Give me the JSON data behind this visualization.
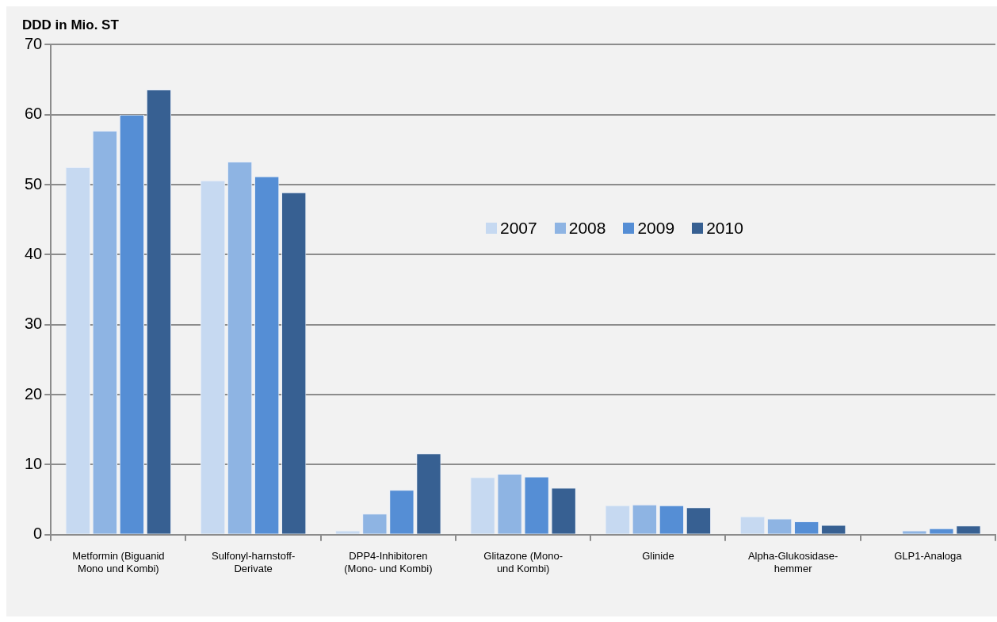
{
  "chart_data": {
    "type": "bar",
    "ylabel": "DDD in Mio. ST",
    "categories": [
      "Metformin (Biguanid Mono und Kombi)",
      "Sulfonyl-harnstoff-Derivate",
      "DPP4-Inhibitoren (Mono- und Kombi)",
      "Glitazone (Mono- und Kombi)",
      "Glinide",
      "Alpha-Glukosidase-hemmer",
      "GLP1-Analoga"
    ],
    "series": [
      {
        "name": "2007",
        "color": "#c6d9f1",
        "values": [
          52.5,
          50.6,
          0.6,
          8.2,
          4.2,
          2.6,
          null
        ]
      },
      {
        "name": "2008",
        "color": "#8eb4e3",
        "values": [
          57.7,
          53.3,
          3.0,
          8.7,
          4.3,
          2.3,
          0.6
        ]
      },
      {
        "name": "2009",
        "color": "#558ed5",
        "values": [
          60.0,
          51.2,
          6.4,
          8.3,
          4.2,
          1.9,
          0.9
        ]
      },
      {
        "name": "2010",
        "color": "#376092",
        "values": [
          63.6,
          48.9,
          11.6,
          6.7,
          3.9,
          1.4,
          1.3
        ]
      }
    ],
    "ylim": [
      0,
      70
    ],
    "yticks": [
      0,
      10,
      20,
      30,
      40,
      50,
      60,
      70
    ],
    "grid": "y",
    "legend": "top right"
  }
}
